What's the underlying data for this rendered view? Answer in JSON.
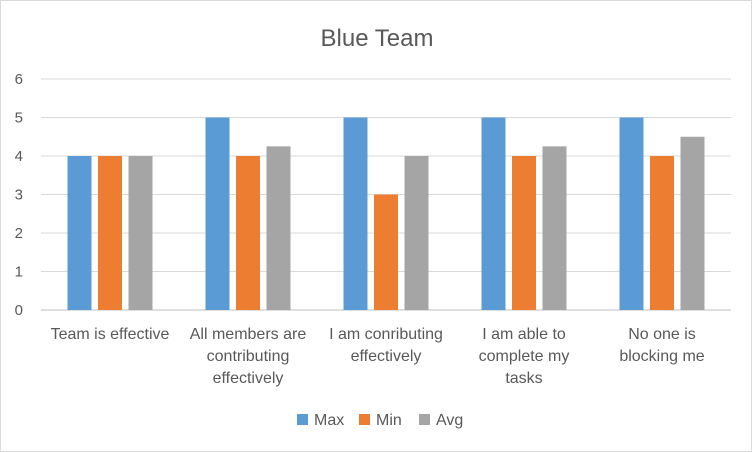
{
  "chart_data": {
    "type": "bar",
    "title": "Blue Team",
    "categories": [
      [
        "Team is effective"
      ],
      [
        "All members are",
        "contributing",
        "effectively"
      ],
      [
        "I am conributing",
        "effectively"
      ],
      [
        "I am able to",
        "complete my",
        "tasks"
      ],
      [
        "No one is",
        "blocking me"
      ]
    ],
    "series": [
      {
        "name": "Max",
        "color": "#5b9bd5",
        "values": [
          4,
          5,
          5,
          5,
          5
        ]
      },
      {
        "name": "Min",
        "color": "#ed7d31",
        "values": [
          4,
          4,
          3,
          4,
          4
        ]
      },
      {
        "name": "Avg",
        "color": "#a5a5a5",
        "values": [
          4,
          4.25,
          4,
          4.25,
          4.5
        ]
      }
    ],
    "ylim": [
      0,
      6
    ],
    "yticks": [
      0,
      1,
      2,
      3,
      4,
      5,
      6
    ],
    "grid": true,
    "legend": "bottom"
  }
}
